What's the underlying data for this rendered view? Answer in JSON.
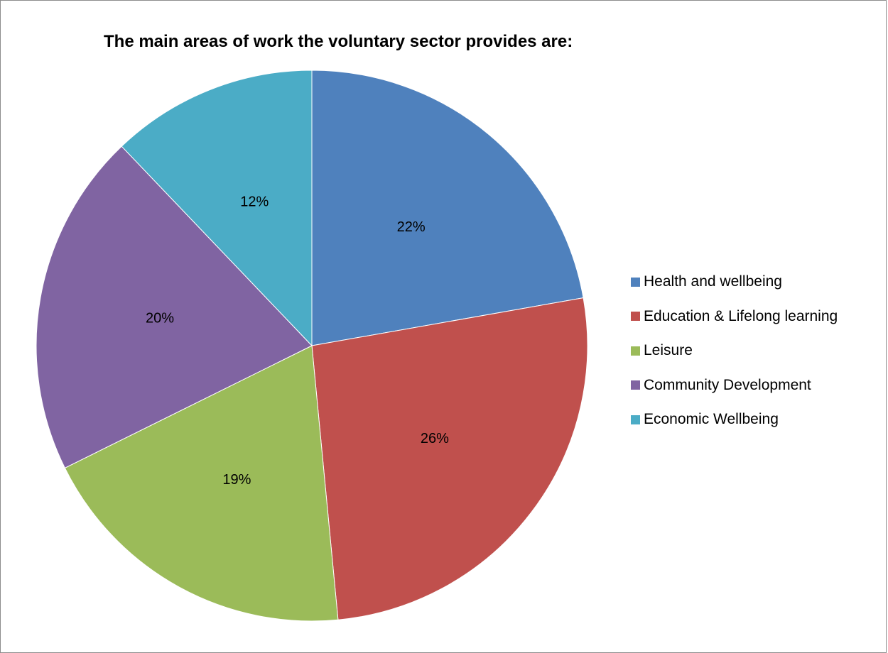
{
  "chart_data": {
    "type": "pie",
    "title": "The main areas of work the voluntary sector provides are:",
    "categories": [
      "Health and wellbeing",
      "Education & Lifelong learning",
      "Leisure",
      "Community Development",
      "Economic Wellbeing"
    ],
    "values": [
      22,
      26,
      19,
      20,
      12
    ],
    "labels": [
      "22%",
      "26%",
      "19%",
      "20%",
      "12%"
    ],
    "colors": [
      "#4f81bd",
      "#c0504d",
      "#9bbb59",
      "#8064a2",
      "#4bacc6"
    ],
    "legend_position": "right"
  }
}
